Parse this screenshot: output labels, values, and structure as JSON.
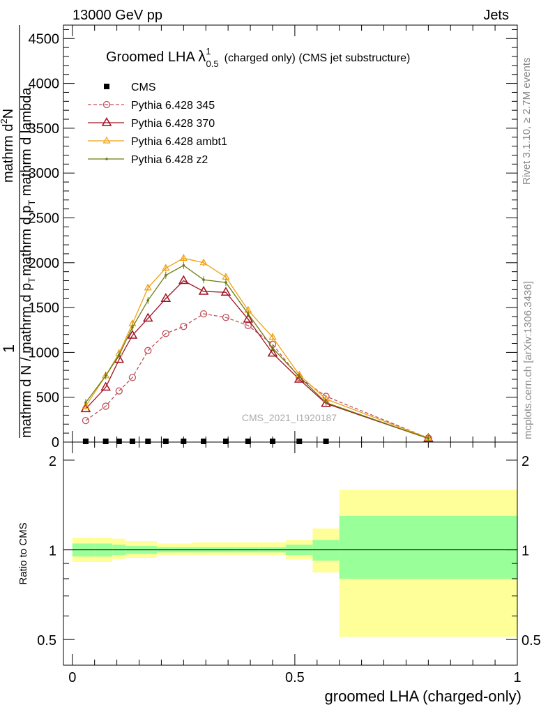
{
  "header": {
    "energy_label": "13000 GeV pp",
    "category_label": "Jets"
  },
  "side_labels": {
    "rivet": "Rivet 3.1.10, ≥ 2.7M events",
    "mcplots": "mcplots.cern.ch [arXiv:1306.3436]"
  },
  "watermark": "CMS_2021_I1920187",
  "chart_data": [
    {
      "type": "line",
      "title": {
        "prefix": "Groomed LHA ",
        "symbol": "λ",
        "superscript": "1",
        "subscript": "0.5",
        "suffix": "(charged only) (CMS jet substructure)"
      },
      "ylabel_numerator": "1",
      "ylabel_lines": [
        "mathrm d N / mathrm d p",
        "T",
        "mathrm d p",
        "T",
        " mathrm d lambda",
        "mathrm d",
        "2",
        "N"
      ],
      "xlim": [
        -0.02,
        1.0
      ],
      "ylim": [
        0,
        4650
      ],
      "yticks": [
        0,
        500,
        1000,
        1500,
        2000,
        2500,
        3000,
        3500,
        4000,
        4500
      ],
      "ytick_labels": [
        "0",
        "500",
        "1000",
        "1500",
        "2000",
        "2500",
        "3000",
        "3500",
        "4000",
        "4500"
      ],
      "legend": {
        "position": "top-left"
      },
      "cms_x": [
        0.03,
        0.075,
        0.105,
        0.135,
        0.17,
        0.21,
        0.25,
        0.295,
        0.345,
        0.395,
        0.45,
        0.51,
        0.57
      ],
      "cms_y": [
        0,
        0,
        0,
        0,
        0,
        0,
        0,
        0,
        0,
        0,
        0,
        0,
        0
      ],
      "series": [
        {
          "name": "CMS",
          "color": "#000000",
          "marker": "square"
        },
        {
          "name": "Pythia 6.428 345",
          "color": "#c0505a",
          "marker": "circle-open",
          "dash": true,
          "x": [
            0.03,
            0.075,
            0.105,
            0.135,
            0.17,
            0.21,
            0.25,
            0.295,
            0.345,
            0.395,
            0.45,
            0.51,
            0.57,
            0.8
          ],
          "y": [
            240,
            400,
            570,
            720,
            1020,
            1210,
            1290,
            1430,
            1390,
            1300,
            1090,
            720,
            510,
            45
          ]
        },
        {
          "name": "Pythia 6.428 370",
          "color": "#a01020",
          "marker": "triangle-open",
          "x": [
            0.03,
            0.075,
            0.105,
            0.135,
            0.17,
            0.21,
            0.25,
            0.295,
            0.345,
            0.395,
            0.45,
            0.51,
            0.57,
            0.8
          ],
          "y": [
            370,
            610,
            920,
            1190,
            1380,
            1600,
            1800,
            1680,
            1670,
            1370,
            990,
            700,
            430,
            40
          ]
        },
        {
          "name": "Pythia 6.428 ambt1",
          "color": "#f0a010",
          "marker": "triangle-open-small",
          "x": [
            0.03,
            0.075,
            0.105,
            0.135,
            0.17,
            0.21,
            0.25,
            0.295,
            0.345,
            0.395,
            0.45,
            0.51,
            0.57,
            0.8
          ],
          "y": [
            400,
            740,
            990,
            1320,
            1720,
            1940,
            2050,
            2000,
            1840,
            1470,
            1170,
            750,
            480,
            45
          ]
        },
        {
          "name": "Pythia 6.428 z2",
          "color": "#6b7a10",
          "marker": "dot",
          "x": [
            0.03,
            0.075,
            0.105,
            0.135,
            0.17,
            0.21,
            0.25,
            0.295,
            0.345,
            0.395,
            0.45,
            0.51,
            0.57,
            0.8
          ],
          "y": [
            440,
            740,
            970,
            1280,
            1580,
            1860,
            1970,
            1810,
            1780,
            1430,
            1050,
            730,
            440,
            40
          ]
        }
      ]
    },
    {
      "type": "area",
      "ylabel": "Ratio to CMS",
      "xlabel": "groomed LHA (charged-only)",
      "xlim": [
        -0.02,
        1.0
      ],
      "xticks": [
        0,
        0.5,
        1
      ],
      "xtick_labels": [
        "0",
        "0.5",
        "1"
      ],
      "yticks": [
        0.5,
        1,
        2
      ],
      "ytick_labels": [
        "0.5",
        "1",
        "2"
      ],
      "yscale": "log",
      "ylim": [
        0.41,
        2.3
      ],
      "bin_edges": [
        0.0,
        0.05,
        0.09,
        0.12,
        0.15,
        0.19,
        0.23,
        0.27,
        0.32,
        0.37,
        0.42,
        0.48,
        0.54,
        0.6,
        1.0
      ],
      "stat_band": [
        [
          0.95,
          1.05
        ],
        [
          0.95,
          1.05
        ],
        [
          0.96,
          1.04
        ],
        [
          0.97,
          1.03
        ],
        [
          0.97,
          1.03
        ],
        [
          0.98,
          1.02
        ],
        [
          0.98,
          1.02
        ],
        [
          0.98,
          1.02
        ],
        [
          0.98,
          1.02
        ],
        [
          0.98,
          1.02
        ],
        [
          0.98,
          1.02
        ],
        [
          0.96,
          1.04
        ],
        [
          0.92,
          1.08
        ],
        [
          0.8,
          1.3
        ]
      ],
      "total_band": [
        [
          0.91,
          1.1
        ],
        [
          0.91,
          1.1
        ],
        [
          0.93,
          1.09
        ],
        [
          0.94,
          1.07
        ],
        [
          0.94,
          1.07
        ],
        [
          0.96,
          1.05
        ],
        [
          0.96,
          1.05
        ],
        [
          0.96,
          1.06
        ],
        [
          0.96,
          1.06
        ],
        [
          0.96,
          1.06
        ],
        [
          0.96,
          1.06
        ],
        [
          0.93,
          1.08
        ],
        [
          0.84,
          1.18
        ],
        [
          0.51,
          1.59
        ]
      ],
      "band_colors": {
        "stat": "#99ff99",
        "total": "#ffff99"
      }
    }
  ]
}
